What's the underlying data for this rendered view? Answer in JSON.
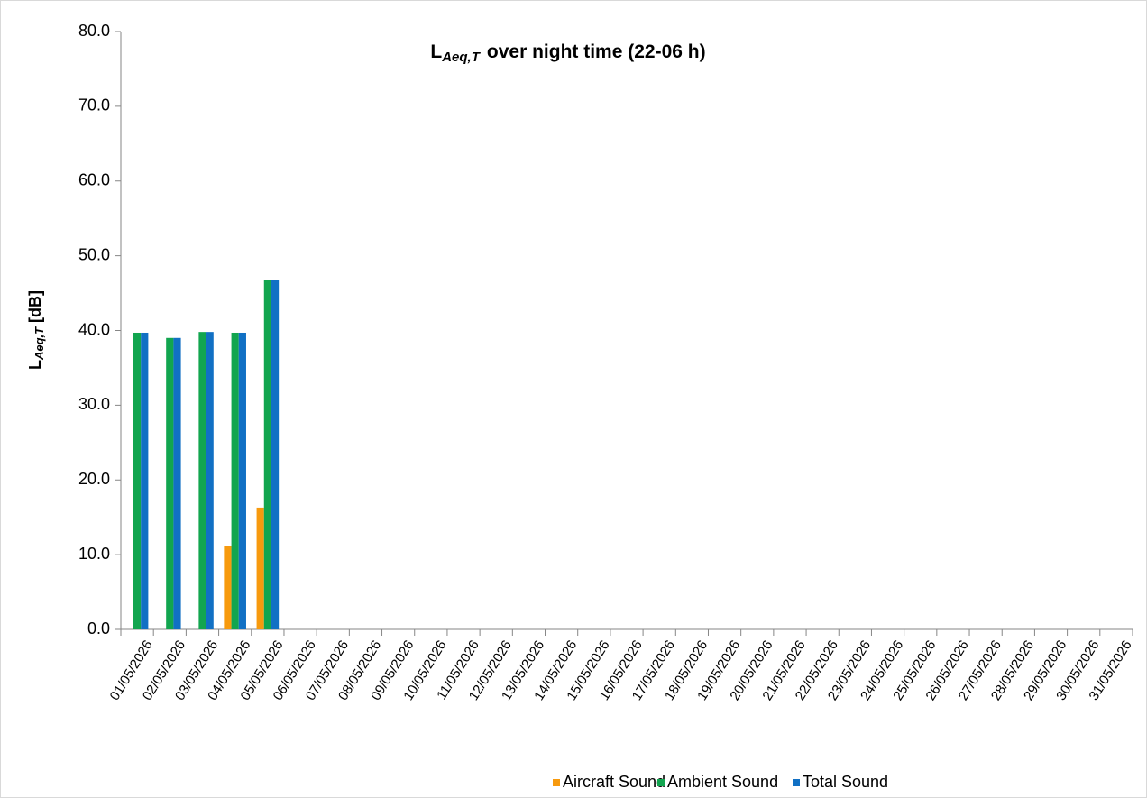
{
  "chart_data": {
    "type": "bar",
    "title": {
      "main": "L",
      "sub": "Aeq,T",
      "rest": "over night time (22-06 h)"
    },
    "y_label": {
      "main": "L",
      "sub": "Aeq,T",
      "rest": "[dB]"
    },
    "categories": [
      "01/05/2026",
      "02/05/2026",
      "03/05/2026",
      "04/05/2026",
      "05/05/2026",
      "06/05/2026",
      "07/05/2026",
      "08/05/2026",
      "09/05/2026",
      "10/05/2026",
      "11/05/2026",
      "12/05/2026",
      "13/05/2026",
      "14/05/2026",
      "15/05/2026",
      "16/05/2026",
      "17/05/2026",
      "18/05/2026",
      "19/05/2026",
      "20/05/2026",
      "21/05/2026",
      "22/05/2026",
      "23/05/2026",
      "24/05/2026",
      "25/05/2026",
      "26/05/2026",
      "27/05/2026",
      "28/05/2026",
      "29/05/2026",
      "30/05/2026",
      "31/05/2026"
    ],
    "series": [
      {
        "name": "Aircraft Sound",
        "color": "#f79a0e",
        "values": [
          null,
          null,
          null,
          11.1,
          16.3,
          null,
          null,
          null,
          null,
          null,
          null,
          null,
          null,
          null,
          null,
          null,
          null,
          null,
          null,
          null,
          null,
          null,
          null,
          null,
          null,
          null,
          null,
          null,
          null,
          null,
          null
        ]
      },
      {
        "name": "Ambient Sound",
        "color": "#12a54f",
        "values": [
          39.7,
          39.0,
          39.8,
          39.7,
          46.7,
          null,
          null,
          null,
          null,
          null,
          null,
          null,
          null,
          null,
          null,
          null,
          null,
          null,
          null,
          null,
          null,
          null,
          null,
          null,
          null,
          null,
          null,
          null,
          null,
          null,
          null
        ]
      },
      {
        "name": "Total Sound",
        "color": "#1170c4",
        "values": [
          39.7,
          39.0,
          39.8,
          39.7,
          46.7,
          null,
          null,
          null,
          null,
          null,
          null,
          null,
          null,
          null,
          null,
          null,
          null,
          null,
          null,
          null,
          null,
          null,
          null,
          null,
          null,
          null,
          null,
          null,
          null,
          null,
          null
        ]
      }
    ],
    "ylim": [
      0,
      80
    ],
    "yticks": [
      {
        "value": 0,
        "label": "0.0"
      },
      {
        "value": 10,
        "label": "10.0"
      },
      {
        "value": 20,
        "label": "20.0"
      },
      {
        "value": 30,
        "label": "30.0"
      },
      {
        "value": 40,
        "label": "40.0"
      },
      {
        "value": 50,
        "label": "50.0"
      },
      {
        "value": 60,
        "label": "60.0"
      },
      {
        "value": 70,
        "label": "70.0"
      },
      {
        "value": 80,
        "label": "80.0"
      }
    ],
    "grid": false,
    "legend": "bottom"
  }
}
